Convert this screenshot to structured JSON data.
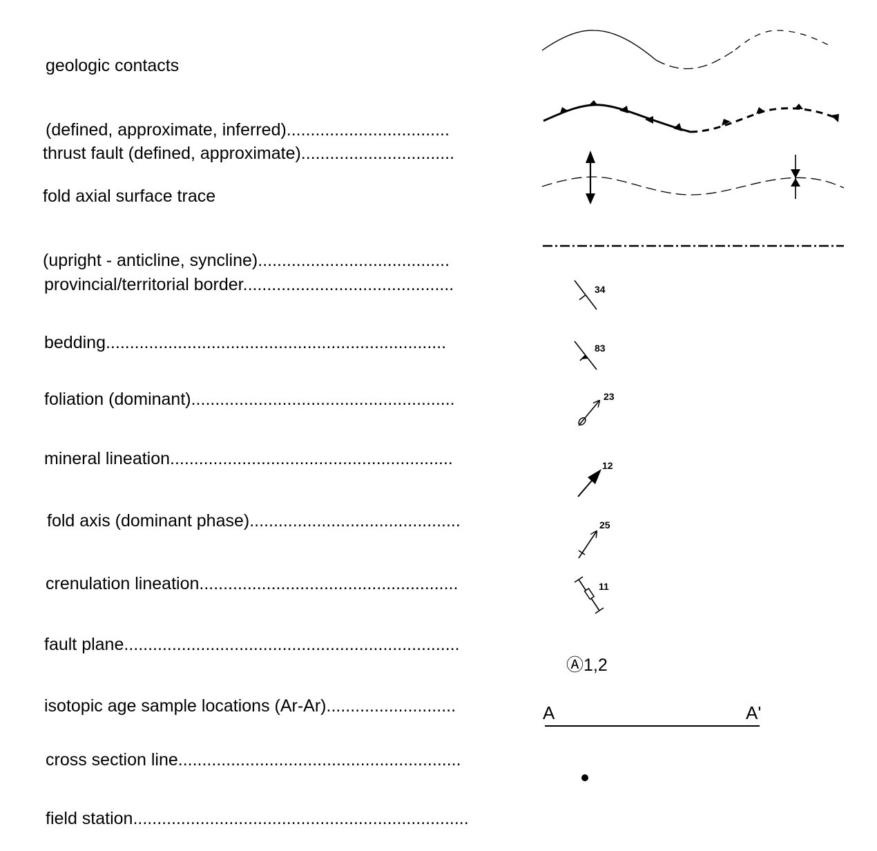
{
  "legend": {
    "geologic_contacts": {
      "line1": "geologic contacts",
      "line2": "(defined, approximate, inferred).................................."
    },
    "thrust_fault": {
      "line1": "thrust fault (defined, approximate)................................"
    },
    "fold_axial_surface_trace": {
      "line1": "fold axial surface trace",
      "line2": "(upright - anticline, syncline)........................................"
    },
    "provincial_border": {
      "line1": "provincial/territorial border............................................"
    },
    "bedding": {
      "line1": "bedding.......................................................................",
      "value": "34"
    },
    "foliation": {
      "line1": "foliation (dominant).......................................................",
      "value": "83"
    },
    "mineral_lineation": {
      "line1": "mineral lineation...........................................................",
      "value": "23"
    },
    "fold_axis": {
      "line1": "fold axis (dominant phase)............................................",
      "value": "12"
    },
    "crenulation_lineation": {
      "line1": "crenulation lineation......................................................",
      "value": "25"
    },
    "fault_plane": {
      "line1": "fault plane......................................................................",
      "value": "11"
    },
    "isotopic_age": {
      "line1": "isotopic age sample locations (Ar-Ar)...........................",
      "symbol_text": "Ⓐ1,2"
    },
    "cross_section_line": {
      "line1": "cross section line...........................................................",
      "left_label": "A",
      "right_label": "A'"
    },
    "field_station": {
      "line1": "field station......................................................................"
    }
  },
  "colors": {
    "ink": "#000000",
    "background": "#ffffff"
  }
}
